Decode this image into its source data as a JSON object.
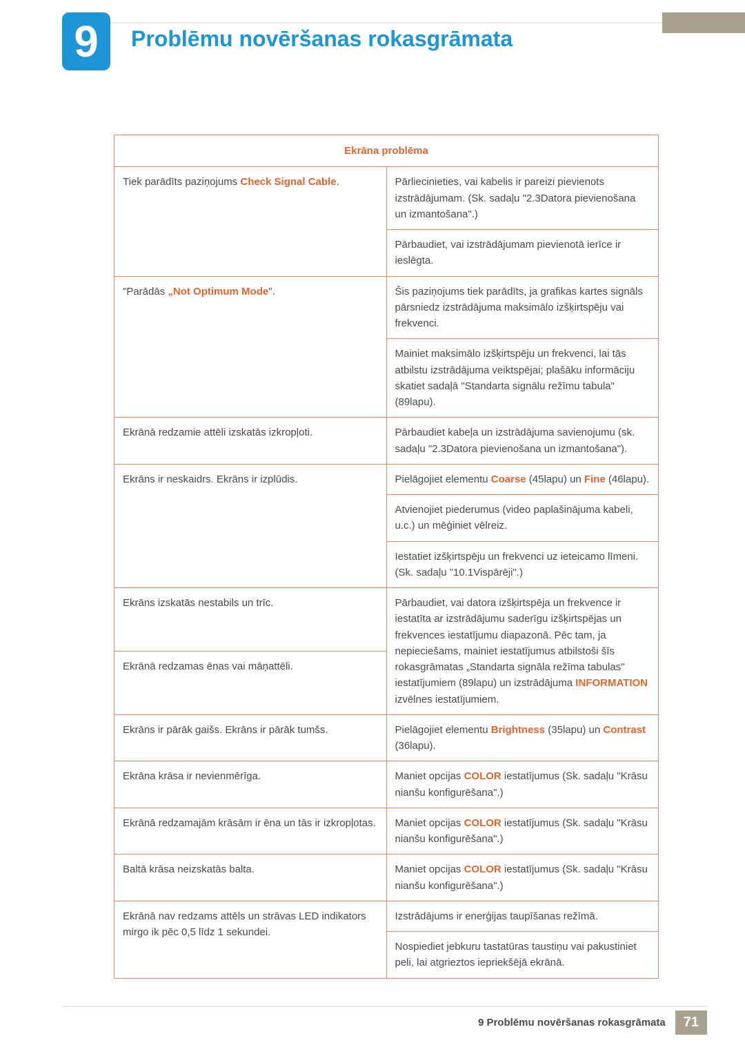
{
  "chapter": {
    "number": "9",
    "title": "Problēmu novēršanas rokasgrāmata"
  },
  "table": {
    "header": "Ekrāna problēma",
    "rows": [
      {
        "l": "Tiek parādīts paziņojums ",
        "l_hl": "Check Signal Cable",
        "l_after": ".",
        "l_rowspan": 2,
        "r": "Pārliecinieties, vai kabelis ir pareizi pievienots izstrādājumam. (Sk. sadaļu \"2.3Datora pievienošana un izmantošana\".)"
      },
      {
        "r": "Pārbaudiet, vai izstrādājumam pievienotā ierīce ir ieslēgta."
      },
      {
        "l": "\"Parādās ",
        "l_hl": "„Not Optimum Mode",
        "l_after": "\".",
        "l_rowspan": 2,
        "r": "Šis paziņojums tiek parādīts, ja grafikas kartes signāls pārsniedz izstrādājuma maksimālo izšķirtspēju vai frekvenci."
      },
      {
        "r": "Mainiet maksimālo izšķirtspēju un frekvenci, lai tās atbilstu izstrādājuma veiktspējai; plašāku informāciju skatiet sadaļā \"Standarta signālu režīmu tabula\" (89lapu)."
      },
      {
        "l": "Ekrānā redzamie attēli izskatās izkropļoti.",
        "r": "Pārbaudiet kabeļa un izstrādājuma savienojumu (sk. sadaļu \"2.3Datora pievienošana un izmantošana\")."
      },
      {
        "l": "Ekrāns ir neskaidrs. Ekrāns ir izplūdis.",
        "l_rowspan": 3,
        "r_pre": "Pielāgojiet elementu ",
        "r_hl": "Coarse",
        "r_mid": " (45lapu) un ",
        "r_hl2": "Fine",
        "r_post": " (46lapu)."
      },
      {
        "r": "Atvienojiet piederumus (video paplašinājuma kabeli, u.c.) un mēģiniet vēlreiz."
      },
      {
        "r": "Iestatiet izšķirtspēju un frekvenci uz ieteicamo līmeni. (Sk. sadaļu \"10.1Vispārēji\".)"
      },
      {
        "l": "Ekrāns izskatās nestabils un trīc.",
        "r_rowspan": 2,
        "leftonly": true,
        "r_pre": "Pārbaudiet, vai datora izšķirtspēja un frekvence ir iestatīta ar izstrādājumu saderīgu izšķirtspējas un frekvences iestatījumu diapazonā. Pēc tam, ja nepieciešams, mainiet iestatījumus atbilstoši šīs rokasgrāmatas „Standarta signāla režīma tabulas\" iestatījumiem (89lapu) un izstrādājuma ",
        "r_hl": "INFORMATION",
        "r_post": " izvēlnes iestatījumiem."
      },
      {
        "l": "Ekrānā redzamas ēnas vai māņattēli.",
        "leftonly2": true
      },
      {
        "l": "Ekrāns ir pārāk gaišs. Ekrāns ir pārāk tumšs.",
        "r_pre": "Pielāgojiet elementu ",
        "r_hl": "Brightness",
        "r_mid": " (35lapu) un ",
        "r_hl2": "Contrast",
        "r_post": " (36lapu)."
      },
      {
        "l": "Ekrāna krāsa ir nevienmērīga.",
        "r_pre": "Maniet opcijas ",
        "r_hl": "COLOR",
        "r_post": " iestatījumus (Sk. sadaļu \"Krāsu nianšu konfigurēšana\".)"
      },
      {
        "l": "Ekrānā redzamajām krāsām ir ēna un tās ir izkropļotas.",
        "r_pre": "Maniet opcijas ",
        "r_hl": "COLOR",
        "r_post": " iestatījumus (Sk. sadaļu \"Krāsu nianšu konfigurēšana\".)"
      },
      {
        "l": "Baltā krāsa neizskatās balta.",
        "r_pre": "Maniet opcijas ",
        "r_hl": "COLOR",
        "r_post": " iestatījumus (Sk. sadaļu \"Krāsu nianšu konfigurēšana\".)"
      },
      {
        "l": "Ekrānā nav redzams attēls un strāvas LED indikators mirgo ik pēc 0,5 līdz 1 sekundei.",
        "l_rowspan": 2,
        "r": "Izstrādājums ir enerģijas taupīšanas režīmā."
      },
      {
        "r": "Nospiediet jebkuru tastatūras taustiņu vai pakustiniet peli, lai atgrieztos iepriekšējā ekrānā."
      }
    ]
  },
  "footer": {
    "text": "9 Problēmu novēršanas rokasgrāmata",
    "page": "71"
  }
}
